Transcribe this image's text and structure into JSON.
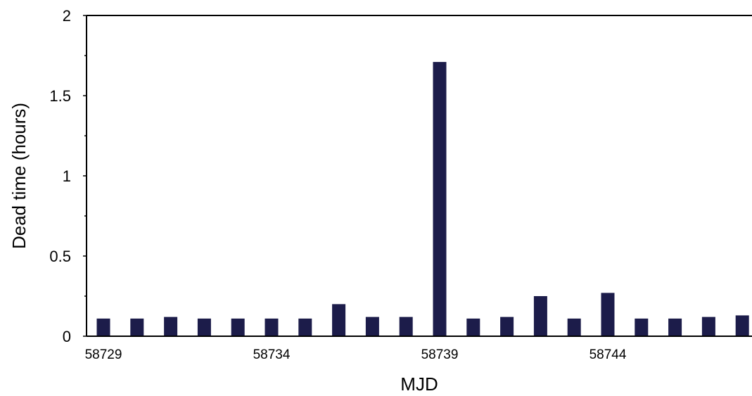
{
  "chart_data": {
    "type": "bar",
    "title": "",
    "xlabel": "MJD",
    "ylabel": "Dead time (hours)",
    "ylim": [
      0,
      2
    ],
    "y_ticks": [
      "0",
      "0.5",
      "1",
      "1.5",
      "2"
    ],
    "x_tick_labels": [
      "58729",
      "58734",
      "58739",
      "58744"
    ],
    "categories": [
      58729,
      58730,
      58731,
      58732,
      58733,
      58734,
      58735,
      58736,
      58737,
      58738,
      58739,
      58740,
      58741,
      58742,
      58743,
      58744,
      58745,
      58746,
      58747,
      58748
    ],
    "values": [
      0.11,
      0.11,
      0.12,
      0.11,
      0.11,
      0.11,
      0.11,
      0.2,
      0.12,
      0.12,
      1.71,
      0.11,
      0.12,
      0.25,
      0.11,
      0.27,
      0.11,
      0.11,
      0.12,
      0.13
    ],
    "bar_color": "#1c1c4a",
    "grid": false,
    "legend": "none"
  }
}
